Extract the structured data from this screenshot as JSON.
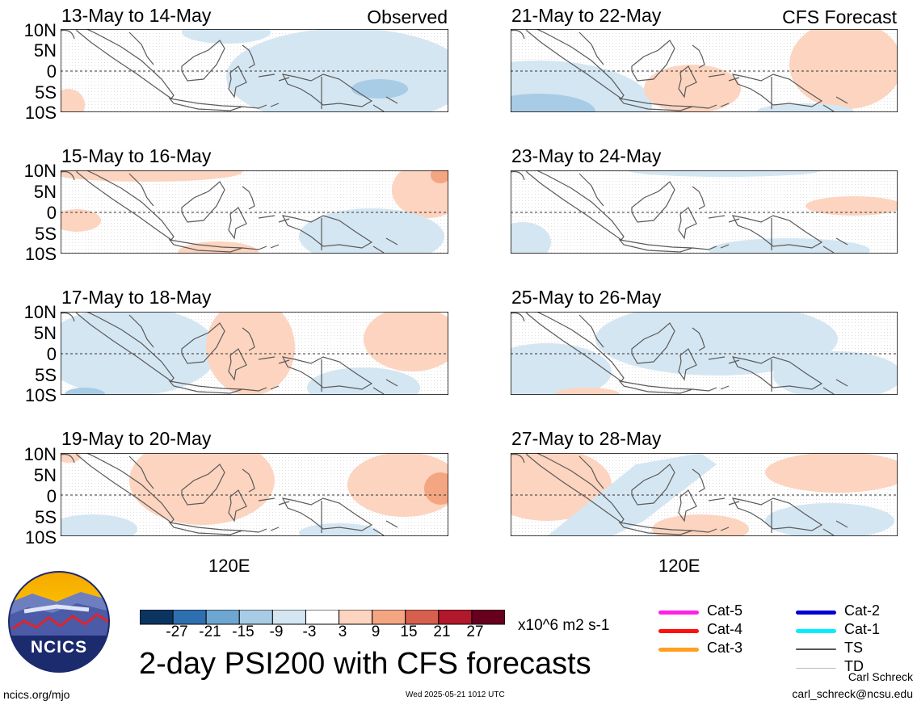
{
  "panels": [
    {
      "title": "13-May to 14-May",
      "tag": "Observed"
    },
    {
      "title": "21-May to 22-May",
      "tag": "CFS Forecast"
    },
    {
      "title": "15-May to 16-May",
      "tag": ""
    },
    {
      "title": "23-May to 24-May",
      "tag": ""
    },
    {
      "title": "17-May to 18-May",
      "tag": ""
    },
    {
      "title": "25-May to 26-May",
      "tag": ""
    },
    {
      "title": "19-May to 20-May",
      "tag": ""
    },
    {
      "title": "27-May to 28-May",
      "tag": ""
    }
  ],
  "lat_labels": [
    "10N",
    "5N",
    "0",
    "5S",
    "10S"
  ],
  "lon_label": "120E",
  "colorbar": {
    "colors": [
      "#0b3560",
      "#2e6fb0",
      "#6ea6d2",
      "#a9cce6",
      "#d4e6f2",
      "#ffffff",
      "#fcd4bf",
      "#f4a582",
      "#d6604d",
      "#b2182b",
      "#67001f"
    ],
    "labels": [
      "-27",
      "-21",
      "-15",
      "-9",
      "-3",
      "3",
      "9",
      "15",
      "21",
      "27"
    ],
    "units": "x10^6 m2 s-1"
  },
  "title": "2-day PSI200 with CFS forecasts",
  "logo_text": "NCICS",
  "url": "ncics.org/mjo",
  "timestamp": "Wed 2025-05-21 1012 UTC",
  "author": "Carl Schreck",
  "email": "carl_schreck@ncsu.edu",
  "legend": [
    {
      "label": "Cat-5",
      "color": "#ff22e6"
    },
    {
      "label": "Cat-4",
      "color": "#ff0f0f"
    },
    {
      "label": "Cat-3",
      "color": "#ffa020"
    },
    {
      "label": "Cat-2",
      "color": "#0000d0"
    },
    {
      "label": "Cat-1",
      "color": "#00eeff"
    },
    {
      "label": "TS",
      "color": "#555555"
    },
    {
      "label": "TD",
      "color": "#bbbbbb"
    }
  ]
}
